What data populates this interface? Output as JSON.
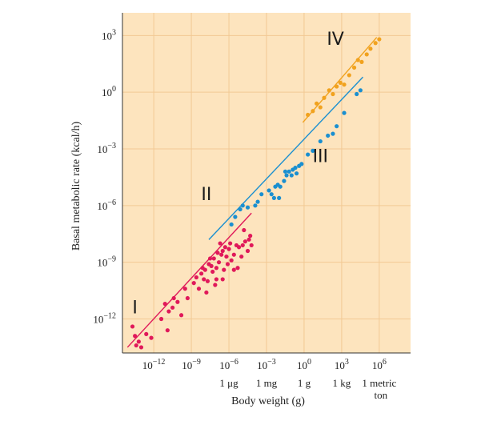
{
  "chart_data": {
    "type": "scatter",
    "log_x": true,
    "log_y": true,
    "xlim_exp": [
      -14.5,
      8.5
    ],
    "ylim_exp": [
      -13.8,
      4.2
    ],
    "xlabel": "Body weight (g)",
    "ylabel": "Basal metabolic rate (kcal/h)",
    "grid": true,
    "x_ticks": [
      {
        "exp": -12,
        "label": "10",
        "sup": "−12"
      },
      {
        "exp": -9,
        "label": "10",
        "sup": "−9"
      },
      {
        "exp": -6,
        "label": "10",
        "sup": "−6"
      },
      {
        "exp": -3,
        "label": "10",
        "sup": "−3"
      },
      {
        "exp": 0,
        "label": "10",
        "sup": "0"
      },
      {
        "exp": 3,
        "label": "10",
        "sup": "3"
      },
      {
        "exp": 6,
        "label": "10",
        "sup": "6"
      }
    ],
    "y_ticks": [
      {
        "exp": 3,
        "label": "10",
        "sup": "3"
      },
      {
        "exp": 0,
        "label": "10",
        "sup": "0"
      },
      {
        "exp": -3,
        "label": "10",
        "sup": "−3"
      },
      {
        "exp": -6,
        "label": "10",
        "sup": "−6"
      },
      {
        "exp": -9,
        "label": "10",
        "sup": "−9"
      },
      {
        "exp": -12,
        "label": "10",
        "sup": "−12"
      }
    ],
    "x_unit_labels": [
      {
        "exp": -6,
        "line1": "1 μg",
        "line2": ""
      },
      {
        "exp": -3,
        "line1": "1 mg",
        "line2": ""
      },
      {
        "exp": 0,
        "line1": "1 g",
        "line2": ""
      },
      {
        "exp": 3,
        "line1": "1 kg",
        "line2": ""
      },
      {
        "exp": 6,
        "line1": "1 metric",
        "line2": "ton"
      }
    ],
    "series": [
      {
        "name": "I",
        "color": "#e0195a",
        "label_at": [
          -13.5,
          -11.7
        ],
        "fit": [
          [
            -14.1,
            -13.5
          ],
          [
            -4.2,
            -6.4
          ]
        ],
        "points": [
          [
            -13.7,
            -12.4
          ],
          [
            -13.5,
            -12.9
          ],
          [
            -13.4,
            -13.4
          ],
          [
            -13.2,
            -13.2
          ],
          [
            -13.0,
            -13.5
          ],
          [
            -12.6,
            -12.8
          ],
          [
            -12.2,
            -13.0
          ],
          [
            -11.4,
            -12.0
          ],
          [
            -11.1,
            -11.2
          ],
          [
            -10.9,
            -12.6
          ],
          [
            -10.8,
            -11.6
          ],
          [
            -10.5,
            -11.4
          ],
          [
            -10.4,
            -10.9
          ],
          [
            -10.1,
            -11.1
          ],
          [
            -9.8,
            -11.8
          ],
          [
            -9.5,
            -10.4
          ],
          [
            -9.3,
            -10.9
          ],
          [
            -8.8,
            -10.1
          ],
          [
            -8.4,
            -10.4
          ],
          [
            -8.2,
            -9.6
          ],
          [
            -8.0,
            -9.9
          ],
          [
            -7.9,
            -9.4
          ],
          [
            -7.7,
            -10.0
          ],
          [
            -7.5,
            -8.8
          ],
          [
            -7.4,
            -9.2
          ],
          [
            -7.2,
            -8.8
          ],
          [
            -7.0,
            -9.3
          ],
          [
            -6.8,
            -9.0
          ],
          [
            -6.6,
            -8.6
          ],
          [
            -6.4,
            -9.4
          ],
          [
            -6.2,
            -8.7
          ],
          [
            -6.0,
            -8.3
          ],
          [
            -5.8,
            -8.9
          ],
          [
            -5.6,
            -8.6
          ],
          [
            -5.4,
            -8.1
          ],
          [
            -5.2,
            -8.2
          ],
          [
            -5.0,
            -8.7
          ],
          [
            -4.9,
            -8.1
          ],
          [
            -4.7,
            -7.9
          ],
          [
            -4.5,
            -8.4
          ],
          [
            -4.3,
            -7.6
          ],
          [
            -4.2,
            -8.1
          ],
          [
            -7.6,
            -9.1
          ],
          [
            -7.3,
            -9.5
          ],
          [
            -6.9,
            -8.5
          ],
          [
            -6.5,
            -8.4
          ],
          [
            -6.1,
            -9.1
          ],
          [
            -7.1,
            -10.2
          ],
          [
            -7.8,
            -10.6
          ],
          [
            -8.6,
            -9.8
          ],
          [
            -6.7,
            -8.0
          ],
          [
            -5.9,
            -8.0
          ],
          [
            -4.8,
            -7.3
          ],
          [
            -4.4,
            -7.8
          ],
          [
            -6.3,
            -8.2
          ],
          [
            -7.0,
            -9.9
          ],
          [
            -6.5,
            -9.9
          ],
          [
            -5.3,
            -9.3
          ],
          [
            -8.1,
            -9.3
          ],
          [
            -5.6,
            -9.4
          ]
        ]
      },
      {
        "name": "II",
        "color": "#1a8fd0",
        "label_at": [
          -7.8,
          -5.7
        ],
        "fit": [
          [
            -7.6,
            -7.8
          ],
          [
            4.7,
            0.8
          ]
        ],
        "points": [
          [
            -5.8,
            -7.0
          ],
          [
            -5.5,
            -6.6
          ],
          [
            -5.1,
            -6.2
          ],
          [
            -4.9,
            -6.0
          ],
          [
            -4.5,
            -6.1
          ],
          [
            -3.9,
            -6.0
          ],
          [
            -3.7,
            -5.8
          ],
          [
            -3.4,
            -5.4
          ],
          [
            -2.8,
            -5.2
          ],
          [
            -2.6,
            -5.4
          ],
          [
            -2.4,
            -5.6
          ],
          [
            -2.3,
            -5.0
          ],
          [
            -2.1,
            -4.9
          ],
          [
            -1.9,
            -5.0
          ],
          [
            -1.6,
            -4.7
          ],
          [
            -1.4,
            -4.4
          ],
          [
            -1.2,
            -4.2
          ],
          [
            -1.0,
            -4.4
          ],
          [
            -0.9,
            -4.1
          ],
          [
            -0.7,
            -4.0
          ],
          [
            -0.6,
            -4.3
          ],
          [
            -0.4,
            -3.9
          ],
          [
            -0.2,
            -3.8
          ],
          [
            0.3,
            -3.3
          ],
          [
            0.7,
            -3.1
          ],
          [
            1.3,
            -2.6
          ],
          [
            1.9,
            -2.3
          ],
          [
            2.3,
            -2.2
          ],
          [
            2.6,
            -1.8
          ],
          [
            3.2,
            -1.1
          ],
          [
            4.2,
            -0.1
          ],
          [
            4.5,
            0.1
          ],
          [
            -1.5,
            -4.2
          ],
          [
            -2.0,
            -5.6
          ]
        ]
      },
      {
        "name": "III",
        "color": "#1a8fd0",
        "label_at": [
          1.3,
          -3.7
        ],
        "fit": null,
        "points": []
      },
      {
        "name": "IV",
        "color": "#f1a21e",
        "label_at": [
          2.5,
          2.5
        ],
        "fit": [
          [
            -0.1,
            -1.6
          ],
          [
            5.8,
            2.9
          ]
        ],
        "points": [
          [
            0.3,
            -1.2
          ],
          [
            0.7,
            -1.0
          ],
          [
            1.0,
            -0.6
          ],
          [
            1.3,
            -0.8
          ],
          [
            1.6,
            -0.3
          ],
          [
            2.0,
            0.1
          ],
          [
            2.3,
            -0.1
          ],
          [
            2.6,
            0.3
          ],
          [
            2.9,
            0.5
          ],
          [
            3.2,
            0.4
          ],
          [
            3.6,
            0.9
          ],
          [
            4.0,
            1.3
          ],
          [
            4.3,
            1.7
          ],
          [
            4.6,
            1.6
          ],
          [
            5.0,
            2.0
          ],
          [
            5.3,
            2.3
          ],
          [
            5.7,
            2.6
          ],
          [
            6.0,
            2.8
          ]
        ]
      }
    ]
  }
}
